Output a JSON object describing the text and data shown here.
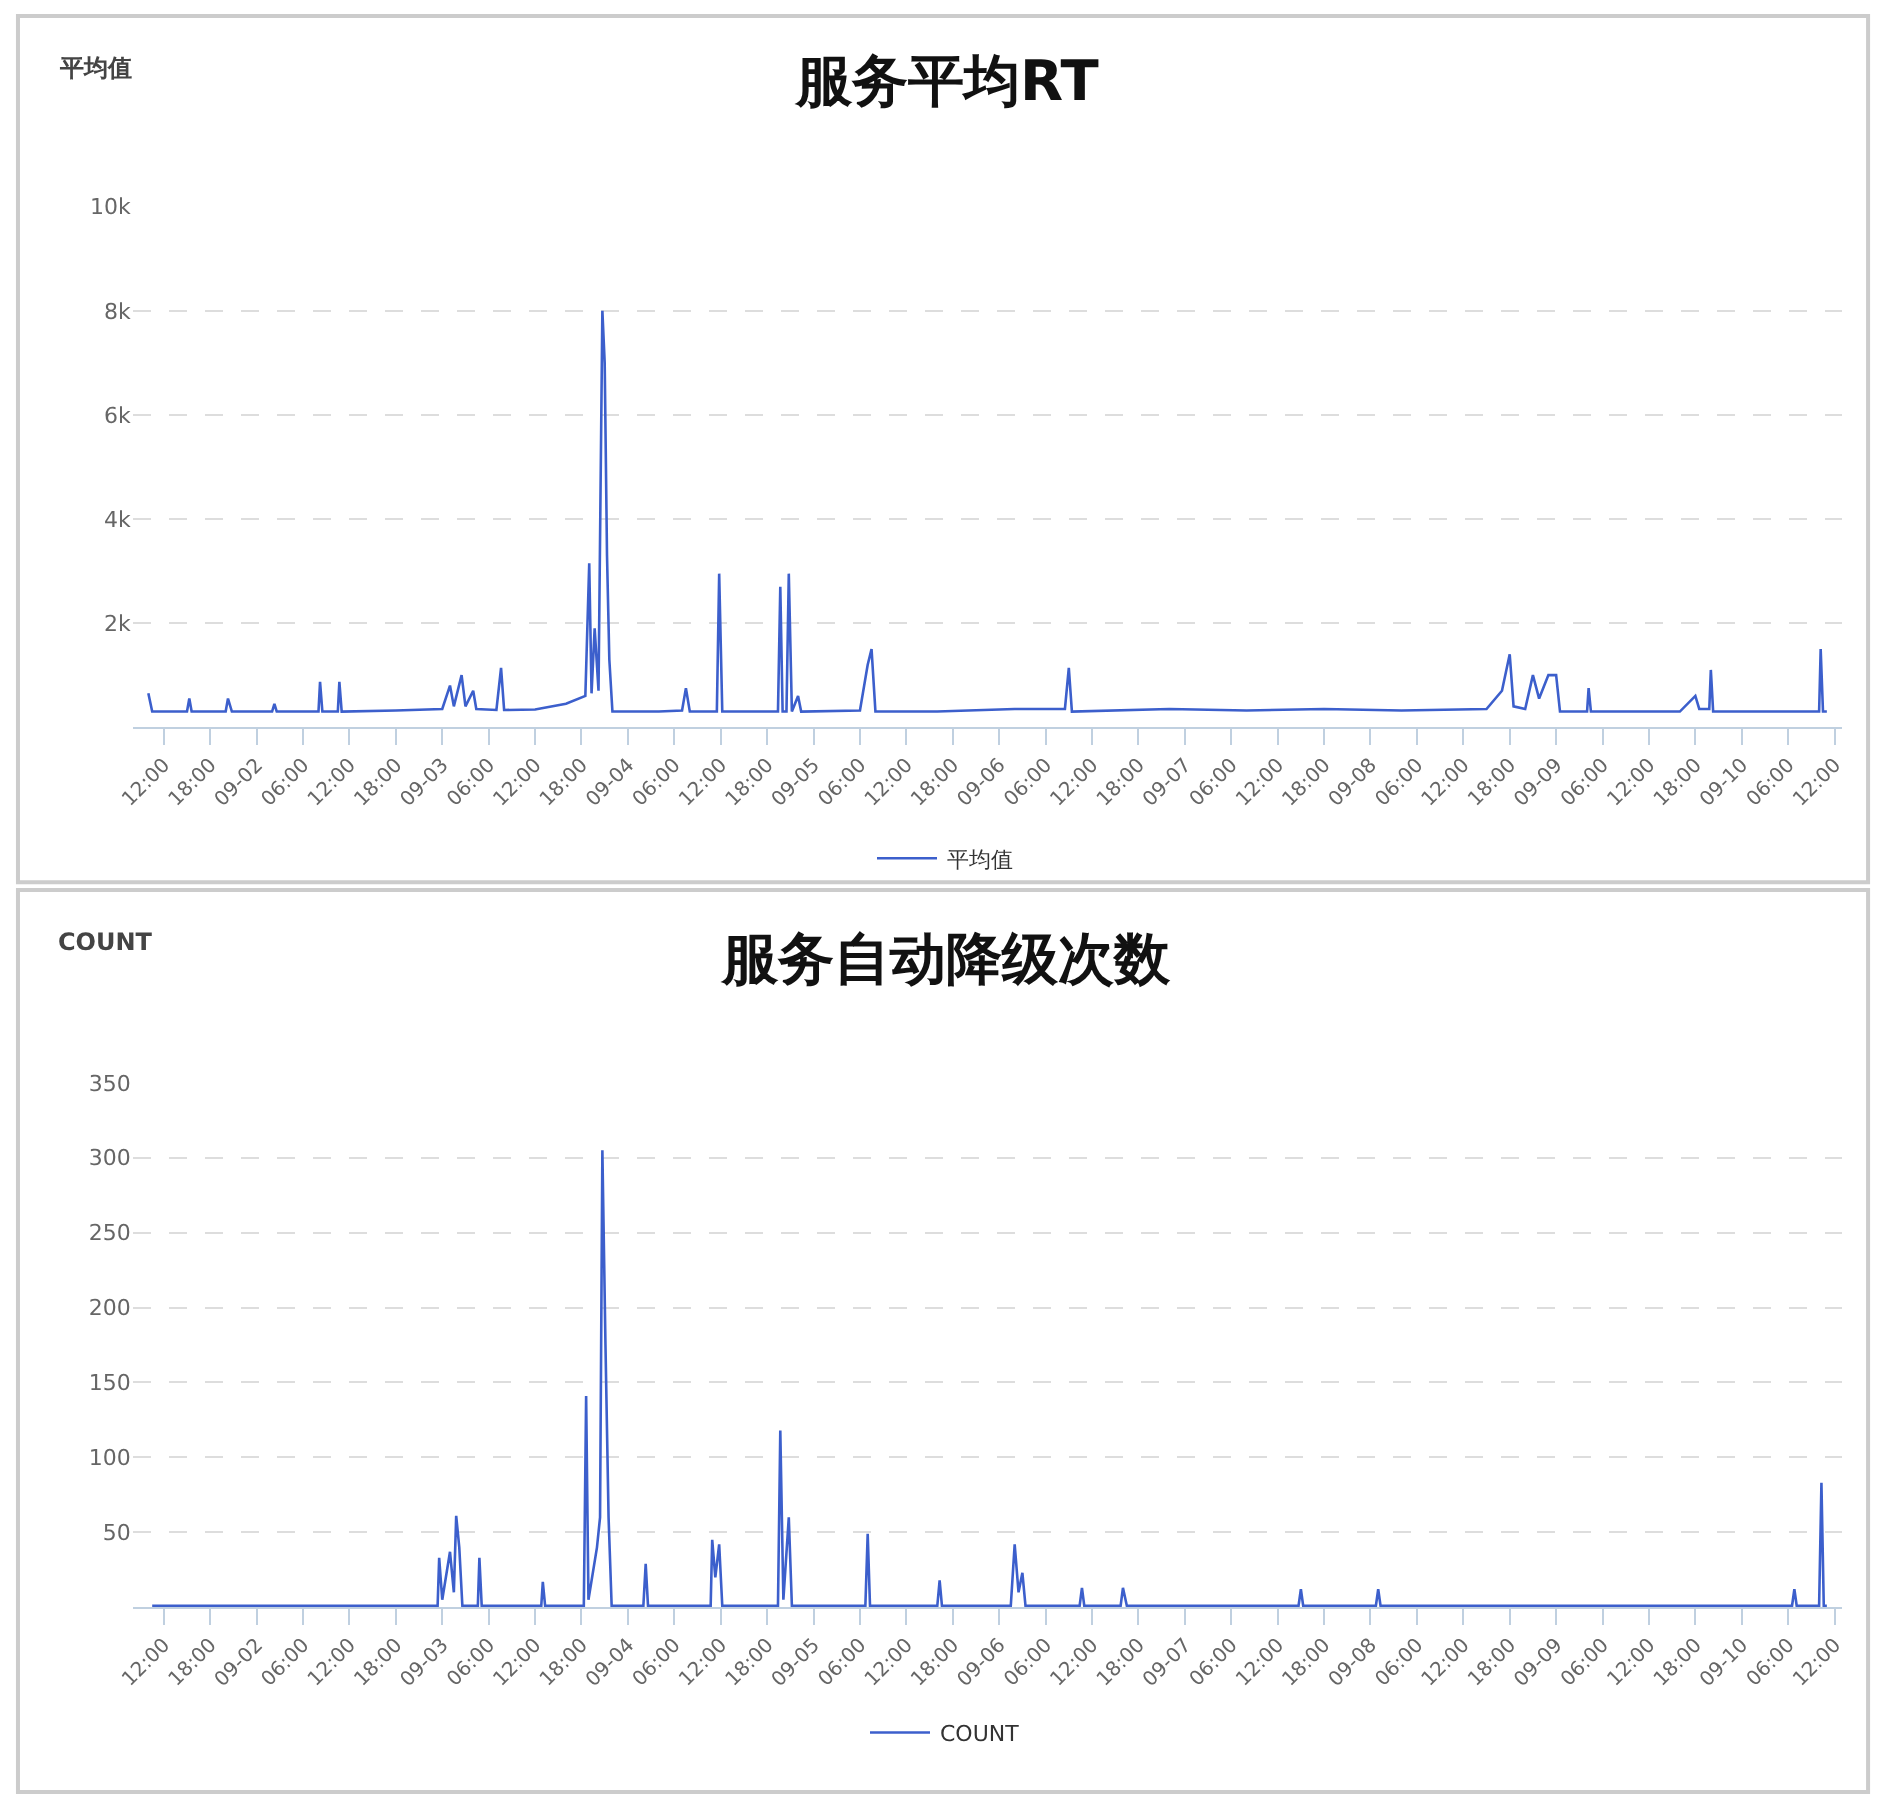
{
  "chart_data": [
    {
      "type": "line",
      "title": "服务平均RT",
      "ylabel": "平均值",
      "grid": "y",
      "legend": "bottom",
      "marker": "none",
      "line_style": "solid",
      "xlim": [
        "--09-01T08:00",
        "--09-10T13:00"
      ],
      "ylim": [
        0,
        10000
      ],
      "xticks": [
        {
          "value": "--09-01T12:00",
          "label": "12:00"
        },
        {
          "value": "--09-01T18:00",
          "label": "18:00"
        },
        {
          "value": "--09-02T00:00",
          "label": "09-02"
        },
        {
          "value": "--09-02T06:00",
          "label": "06:00"
        },
        {
          "value": "--09-02T12:00",
          "label": "12:00"
        },
        {
          "value": "--09-02T18:00",
          "label": "18:00"
        },
        {
          "value": "--09-03T00:00",
          "label": "09-03"
        },
        {
          "value": "--09-03T06:00",
          "label": "06:00"
        },
        {
          "value": "--09-03T12:00",
          "label": "12:00"
        },
        {
          "value": "--09-03T18:00",
          "label": "18:00"
        },
        {
          "value": "--09-04T00:00",
          "label": "09-04"
        },
        {
          "value": "--09-04T06:00",
          "label": "06:00"
        },
        {
          "value": "--09-04T12:00",
          "label": "12:00"
        },
        {
          "value": "--09-04T18:00",
          "label": "18:00"
        },
        {
          "value": "--09-05T00:00",
          "label": "09-05"
        },
        {
          "value": "--09-05T06:00",
          "label": "06:00"
        },
        {
          "value": "--09-05T12:00",
          "label": "12:00"
        },
        {
          "value": "--09-05T18:00",
          "label": "18:00"
        },
        {
          "value": "--09-06T00:00",
          "label": "09-06"
        },
        {
          "value": "--09-06T06:00",
          "label": "06:00"
        },
        {
          "value": "--09-06T12:00",
          "label": "12:00"
        },
        {
          "value": "--09-06T18:00",
          "label": "18:00"
        },
        {
          "value": "--09-07T00:00",
          "label": "09-07"
        },
        {
          "value": "--09-07T06:00",
          "label": "06:00"
        },
        {
          "value": "--09-07T12:00",
          "label": "12:00"
        },
        {
          "value": "--09-07T18:00",
          "label": "18:00"
        },
        {
          "value": "--09-08T00:00",
          "label": "09-08"
        },
        {
          "value": "--09-08T06:00",
          "label": "06:00"
        },
        {
          "value": "--09-08T12:00",
          "label": "12:00"
        },
        {
          "value": "--09-08T18:00",
          "label": "18:00"
        },
        {
          "value": "--09-09T00:00",
          "label": "09-09"
        },
        {
          "value": "--09-09T06:00",
          "label": "06:00"
        },
        {
          "value": "--09-09T12:00",
          "label": "12:00"
        },
        {
          "value": "--09-09T18:00",
          "label": "18:00"
        },
        {
          "value": "--09-10T00:00",
          "label": "09-10"
        },
        {
          "value": "--09-10T06:00",
          "label": "06:00"
        },
        {
          "value": "--09-10T12:00",
          "label": "12:00"
        }
      ],
      "yticks": [
        {
          "value": 2000,
          "label": "2k"
        },
        {
          "value": 4000,
          "label": "4k"
        },
        {
          "value": 6000,
          "label": "6k"
        },
        {
          "value": 8000,
          "label": "8k"
        },
        {
          "value": 10000,
          "label": "10k"
        }
      ],
      "series": [
        {
          "name": "平均值",
          "color": "#3c5fcc",
          "x": [
            "--09-01T10:00",
            "--09-01T10:30",
            "--09-01T15:00",
            "--09-01T15:18",
            "--09-01T15:36",
            "--09-01T20:00",
            "--09-01T20:18",
            "--09-01T20:48",
            "--09-02T02:00",
            "--09-02T02:18",
            "--09-02T02:36",
            "--09-02T08:00",
            "--09-02T08:12",
            "--09-02T08:30",
            "--09-02T10:30",
            "--09-02T10:42",
            "--09-02T11:00",
            "--09-02T18:00",
            "--09-03T00:00",
            "--09-03T01:00",
            "--09-03T01:30",
            "--09-03T02:30",
            "--09-03T03:00",
            "--09-03T04:00",
            "--09-03T04:24",
            "--09-03T07:00",
            "--09-03T07:36",
            "--09-03T08:00",
            "--09-03T12:00",
            "--09-03T16:00",
            "--09-03T18:30",
            "--09-03T19:00",
            "--09-03T19:18",
            "--09-03T19:42",
            "--09-03T20:12",
            "--09-03T20:42",
            "--09-03T21:00",
            "--09-03T21:18",
            "--09-03T21:36",
            "--09-03T22:00",
            "--09-04T04:00",
            "--09-04T07:00",
            "--09-04T07:30",
            "--09-04T08:00",
            "--09-04T11:30",
            "--09-04T11:48",
            "--09-04T12:12",
            "--09-04T19:24",
            "--09-04T19:42",
            "--09-04T20:00",
            "--09-04T20:30",
            "--09-04T20:48",
            "--09-04T21:12",
            "--09-04T22:00",
            "--09-04T22:24",
            "--09-05T06:00",
            "--09-05T07:00",
            "--09-05T07:30",
            "--09-05T08:00",
            "--09-05T16:00",
            "--09-06T02:00",
            "--09-06T08:30",
            "--09-06T09:00",
            "--09-06T09:24",
            "--09-06T22:00",
            "--09-07T08:00",
            "--09-07T18:00",
            "--09-08T04:00",
            "--09-08T15:00",
            "--09-08T17:00",
            "--09-08T18:00",
            "--09-08T18:30",
            "--09-08T20:00",
            "--09-08T21:00",
            "--09-08T21:48",
            "--09-08T23:00",
            "--09-09T00:00",
            "--09-09T00:30",
            "--09-09T04:00",
            "--09-09T04:12",
            "--09-09T04:30",
            "--09-09T16:00",
            "--09-09T18:00",
            "--09-09T18:30",
            "--09-09T19:48",
            "--09-09T20:00",
            "--09-09T20:18",
            "--09-10T10:00",
            "--09-10T10:12",
            "--09-10T10:30",
            "--09-10T11:00"
          ],
          "values": [
            650,
            300,
            300,
            550,
            300,
            300,
            550,
            300,
            300,
            450,
            300,
            300,
            870,
            300,
            300,
            870,
            300,
            320,
            350,
            800,
            400,
            1000,
            400,
            700,
            350,
            330,
            1140,
            330,
            340,
            450,
            600,
            3150,
            650,
            1900,
            700,
            8000,
            7000,
            3300,
            1300,
            300,
            300,
            320,
            750,
            300,
            300,
            2950,
            300,
            300,
            2700,
            300,
            300,
            2950,
            300,
            600,
            300,
            320,
            1200,
            1500,
            300,
            300,
            350,
            350,
            1140,
            300,
            350,
            320,
            350,
            320,
            350,
            700,
            1400,
            400,
            350,
            1000,
            550,
            1000,
            1000,
            300,
            300,
            750,
            300,
            300,
            600,
            350,
            350,
            1100,
            300,
            300,
            1500,
            300,
            300
          ]
        }
      ]
    },
    {
      "type": "line",
      "title": "服务自动降级次数",
      "ylabel": "COUNT",
      "grid": "y",
      "legend": "bottom",
      "marker": "none",
      "line_style": "solid",
      "xlim": [
        "--09-01T08:00",
        "--09-10T13:00"
      ],
      "ylim": [
        0,
        350
      ],
      "xticks": [
        {
          "value": "--09-01T12:00",
          "label": "12:00"
        },
        {
          "value": "--09-01T18:00",
          "label": "18:00"
        },
        {
          "value": "--09-02T00:00",
          "label": "09-02"
        },
        {
          "value": "--09-02T06:00",
          "label": "06:00"
        },
        {
          "value": "--09-02T12:00",
          "label": "12:00"
        },
        {
          "value": "--09-02T18:00",
          "label": "18:00"
        },
        {
          "value": "--09-03T00:00",
          "label": "09-03"
        },
        {
          "value": "--09-03T06:00",
          "label": "06:00"
        },
        {
          "value": "--09-03T12:00",
          "label": "12:00"
        },
        {
          "value": "--09-03T18:00",
          "label": "18:00"
        },
        {
          "value": "--09-04T00:00",
          "label": "09-04"
        },
        {
          "value": "--09-04T06:00",
          "label": "06:00"
        },
        {
          "value": "--09-04T12:00",
          "label": "12:00"
        },
        {
          "value": "--09-04T18:00",
          "label": "18:00"
        },
        {
          "value": "--09-05T00:00",
          "label": "09-05"
        },
        {
          "value": "--09-05T06:00",
          "label": "06:00"
        },
        {
          "value": "--09-05T12:00",
          "label": "12:00"
        },
        {
          "value": "--09-05T18:00",
          "label": "18:00"
        },
        {
          "value": "--09-06T00:00",
          "label": "09-06"
        },
        {
          "value": "--09-06T06:00",
          "label": "06:00"
        },
        {
          "value": "--09-06T12:00",
          "label": "12:00"
        },
        {
          "value": "--09-06T18:00",
          "label": "18:00"
        },
        {
          "value": "--09-07T00:00",
          "label": "09-07"
        },
        {
          "value": "--09-07T06:00",
          "label": "06:00"
        },
        {
          "value": "--09-07T12:00",
          "label": "12:00"
        },
        {
          "value": "--09-07T18:00",
          "label": "18:00"
        },
        {
          "value": "--09-08T00:00",
          "label": "09-08"
        },
        {
          "value": "--09-08T06:00",
          "label": "06:00"
        },
        {
          "value": "--09-08T12:00",
          "label": "12:00"
        },
        {
          "value": "--09-08T18:00",
          "label": "18:00"
        },
        {
          "value": "--09-09T00:00",
          "label": "09-09"
        },
        {
          "value": "--09-09T06:00",
          "label": "06:00"
        },
        {
          "value": "--09-09T12:00",
          "label": "12:00"
        },
        {
          "value": "--09-09T18:00",
          "label": "18:00"
        },
        {
          "value": "--09-10T00:00",
          "label": "09-10"
        },
        {
          "value": "--09-10T06:00",
          "label": "06:00"
        },
        {
          "value": "--09-10T12:00",
          "label": "12:00"
        }
      ],
      "yticks": [
        50,
        100,
        150,
        200,
        250,
        300,
        350
      ],
      "series": [
        {
          "name": "COUNT",
          "color": "#3c5fcc",
          "x": [
            "--09-01T10:30",
            "--09-02T18:00",
            "--09-02T23:24",
            "--09-02T23:36",
            "--09-03T00:00",
            "--09-03T01:00",
            "--09-03T01:30",
            "--09-03T01:48",
            "--09-03T02:12",
            "--09-03T02:36",
            "--09-03T04:36",
            "--09-03T04:48",
            "--09-03T05:06",
            "--09-03T12:48",
            "--09-03T13:00",
            "--09-03T13:18",
            "--09-03T18:18",
            "--09-03T18:36",
            "--09-03T18:54",
            "--09-03T20:00",
            "--09-03T20:24",
            "--09-03T20:42",
            "--09-03T21:06",
            "--09-03T21:30",
            "--09-03T21:54",
            "--09-04T02:00",
            "--09-04T02:18",
            "--09-04T02:36",
            "--09-04T10:42",
            "--09-04T10:54",
            "--09-04T11:18",
            "--09-04T11:48",
            "--09-04T12:12",
            "--09-04T19:24",
            "--09-04T19:42",
            "--09-04T20:06",
            "--09-04T20:48",
            "--09-04T21:12",
            "--09-05T06:42",
            "--09-05T07:00",
            "--09-05T07:18",
            "--09-05T16:00",
            "--09-05T16:18",
            "--09-05T16:36",
            "--09-06T01:30",
            "--09-06T02:00",
            "--09-06T02:30",
            "--09-06T03:00",
            "--09-06T03:24",
            "--09-06T10:24",
            "--09-06T10:42",
            "--09-06T11:00",
            "--09-06T15:42",
            "--09-06T16:00",
            "--09-06T16:30",
            "--09-07T14:42",
            "--09-07T15:00",
            "--09-07T15:18",
            "--09-08T00:42",
            "--09-08T01:00",
            "--09-08T01:18",
            "--09-10T06:30",
            "--09-10T06:48",
            "--09-10T07:06",
            "--09-10T10:00",
            "--09-10T10:18",
            "--09-10T10:36",
            "--09-10T11:00"
          ],
          "values": [
            1,
            1,
            1,
            33,
            5,
            37,
            10,
            61,
            40,
            1,
            1,
            33,
            1,
            1,
            17,
            1,
            1,
            141,
            5,
            40,
            60,
            305,
            175,
            60,
            1,
            1,
            29,
            1,
            1,
            45,
            20,
            42,
            1,
            1,
            118,
            5,
            60,
            1,
            1,
            49,
            1,
            1,
            18,
            1,
            1,
            42,
            10,
            23,
            1,
            1,
            13,
            1,
            1,
            13,
            1,
            1,
            12,
            1,
            1,
            12,
            1,
            1,
            12,
            1,
            1,
            83,
            1,
            1
          ]
        }
      ]
    }
  ]
}
